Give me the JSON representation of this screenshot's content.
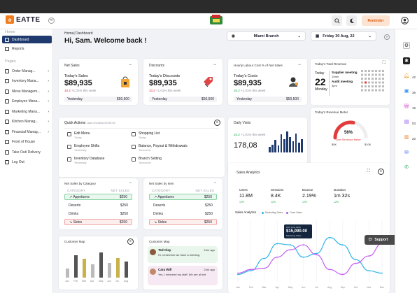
{
  "app": {
    "logo_text": "EATTE",
    "collapse_glyph": "«"
  },
  "topbar": {
    "reminder_label": "Reminder"
  },
  "sidebar": {
    "home_section": "Home",
    "home_items": [
      {
        "label": "Dashboard",
        "icon": "dashboard-icon"
      },
      {
        "label": "Reports",
        "icon": "reports-icon"
      }
    ],
    "pages_section": "Pages",
    "page_items": [
      {
        "label": "Order Manag..."
      },
      {
        "label": "Inventory Mana..."
      },
      {
        "label": "Menu Managem..."
      },
      {
        "label": "Employee Mana..."
      },
      {
        "label": "Marketing Mana..."
      },
      {
        "label": "Kitchen Manag..."
      },
      {
        "label": "Financial Manag..."
      },
      {
        "label": "Front of House"
      },
      {
        "label": "Take Out/ Delivery"
      },
      {
        "label": "Log Out"
      }
    ]
  },
  "header": {
    "breadcrumb": "Home| Dashboard",
    "greeting": "Hi, Sam. Welcome back !",
    "branch": "Miami Branch",
    "date": "Friday 30 Aug, 22"
  },
  "net_sales": {
    "title": "Net Sales",
    "label": "Today's Sales",
    "value": "$89,935",
    "badge": "10.2",
    "change": "+1.01% this week",
    "yesterday_label": "Yesterday",
    "yesterday_value": "$50,500"
  },
  "discounts": {
    "title": "Discounts",
    "label": "Today's Discounts",
    "value": "$89,935",
    "badge": "10.2",
    "change": "+1.01% this week",
    "yesterday_label": "Yesterday",
    "yesterday_value": "$50,500"
  },
  "labour": {
    "title": "Hourly Labour Cost % of Net Sales",
    "label": "Today's Costs",
    "value": "$89,935",
    "badge": "10.2",
    "change": "+1.01% this week",
    "yesterday_label": "Yesterday",
    "yesterday_value": "$50,500"
  },
  "revenue_card": {
    "title": "Today's Total Revenue",
    "today_label": "Today",
    "day": "22",
    "weekday": "Monday",
    "events": [
      {
        "title": "Supplier meeting",
        "time": "10am"
      },
      {
        "title": "Audit meeting",
        "time": "3pm"
      }
    ]
  },
  "quick_actions": {
    "title": "Quick Actions",
    "last_checked": "Last Checked 00:00:00",
    "items": [
      {
        "label": "Edit Menu",
        "sub": "Today"
      },
      {
        "label": "Shopping List",
        "sub": "Today"
      },
      {
        "label": "Employee Shifts",
        "sub": "Yesterday"
      },
      {
        "label": "Balance, Payout & Withdrawals",
        "sub": "Tomorrow"
      },
      {
        "label": "Inventory Database",
        "sub": "Yesterday"
      },
      {
        "label": "Branch Setting",
        "sub": "Tomorrow"
      }
    ]
  },
  "revenue_meter": {
    "title": "Today's Revenue Meter",
    "percent": 56,
    "percent_label": "56%",
    "sub": "Live Revenue Meter",
    "min": "$5K",
    "max": "$10K"
  },
  "daily_visits": {
    "title": "Daily Visits",
    "badge": "10.2",
    "change": "+1.01% this week",
    "value": "178,08",
    "bars": [
      0.25,
      0.35,
      0.55,
      0.3,
      0.8,
      0.6,
      0.95,
      0.7,
      0.5,
      0.85,
      0.45,
      0.6
    ]
  },
  "sales_by_category": {
    "title": "Net Sales by Category",
    "col1": "CATEGORY",
    "col2": "NET SALES",
    "rows": [
      {
        "name": "Appetizers",
        "value": "$250",
        "state": "up"
      },
      {
        "name": "Deserts",
        "value": "$250",
        "state": "none"
      },
      {
        "name": "Drinks",
        "value": "$250",
        "state": "none"
      },
      {
        "name": "Sides",
        "value": "$250",
        "state": "down"
      }
    ]
  },
  "sales_by_item": {
    "title": "Net Sales by Item",
    "col1": "CATEGORY",
    "col2": "NET SALES",
    "rows": [
      {
        "name": "Appetizers",
        "value": "$250",
        "state": "up"
      },
      {
        "name": "Deserts",
        "value": "$250",
        "state": "none"
      },
      {
        "name": "Drinks",
        "value": "$250",
        "state": "none"
      },
      {
        "name": "Sides",
        "value": "$250",
        "state": "down"
      }
    ]
  },
  "sales_analytics": {
    "title": "Sales Analytics",
    "stats": [
      {
        "label": "Users",
        "value": "11.8M",
        "badge": "12%"
      },
      {
        "label": "Sessions",
        "value": "8.4K",
        "badge": "12%"
      },
      {
        "label": "Bounce",
        "value": "2.19%",
        "badge": "12%"
      },
      {
        "label": "Duration",
        "value": "1m 32s",
        "badge": "12%"
      }
    ],
    "chart_title": "Sales Analytics",
    "legend": [
      "Marketing Sales",
      "Case Sales"
    ],
    "tooltip_date": "19th June 2020",
    "tooltip_value": "$15,090.00",
    "tooltip_sub": "Marketing Sales",
    "support_label": "Support"
  },
  "chart_data": {
    "type": "line",
    "title": "Sales Analytics",
    "x": [
      "Jan",
      "Feb",
      "Mar",
      "Apr",
      "May",
      "Jun",
      "Jul",
      "Aug",
      "Sep",
      "Oct",
      "Nov",
      "Dec"
    ],
    "ylim": [
      0,
      100
    ],
    "series": [
      {
        "name": "Marketing Sales",
        "values": [
          12,
          18,
          38,
          62,
          60,
          40,
          46,
          72,
          60,
          36,
          18,
          14
        ]
      },
      {
        "name": "Case Sales",
        "values": [
          14,
          20,
          22,
          40,
          52,
          60,
          44,
          20,
          12,
          30,
          42,
          62
        ]
      }
    ]
  },
  "customer_map": {
    "title": "Customer Map",
    "bars": [
      {
        "label": "Jan",
        "value": 0.35
      },
      {
        "label": "Feb",
        "value": 0.85
      },
      {
        "label": "Mar",
        "value": 0.7
      },
      {
        "label": "Apr",
        "value": 0.5
      },
      {
        "label": "May",
        "value": 0.95
      },
      {
        "label": "Jun",
        "value": 0.55
      },
      {
        "label": "Jul",
        "value": 0.75
      },
      {
        "label": "Aug",
        "value": 0.6
      }
    ]
  },
  "messages": {
    "title": "Customer Map",
    "items": [
      {
        "name": "Ted Clay",
        "time": "24m ago",
        "text": "Hi, remember we have a meeting."
      },
      {
        "name": "Cara Will",
        "time": "24m ago",
        "text": "Yes, I informed my staff. We are all set."
      }
    ]
  },
  "right_rail": {
    "counts": [
      "42",
      "36",
      "15",
      "53",
      "20"
    ]
  },
  "colors": {
    "sidebar_active": "#1e3a6e",
    "accent_orange": "#f07c1e",
    "purple": "#6a4df4",
    "pink": "#e14fc6",
    "cyan": "#2fb5e8",
    "green": "#1aa34a",
    "red": "#d7263d"
  }
}
